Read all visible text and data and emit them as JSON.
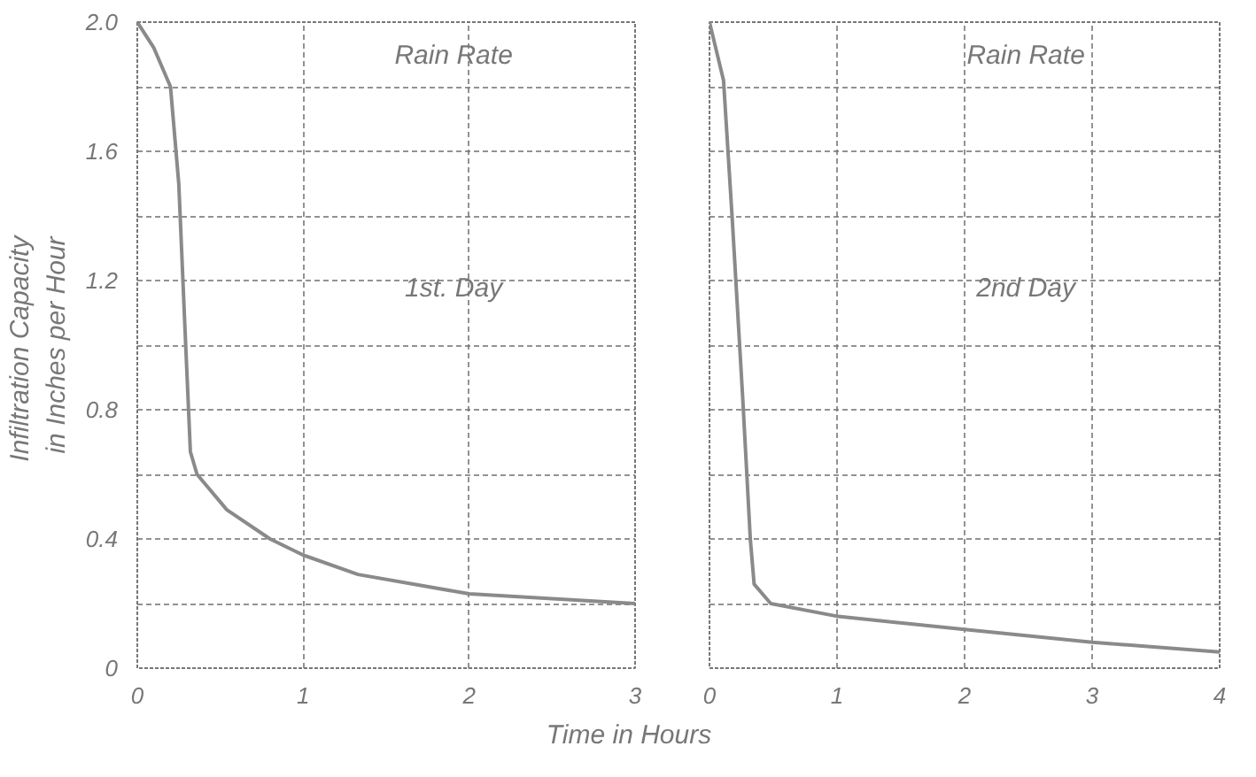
{
  "chart_data": [
    {
      "type": "line",
      "xlabel": "Time in Hours",
      "ylabel": "Infiltration  Capacity\nin Inches per Hour",
      "x": [
        0,
        0.1,
        0.2,
        0.25,
        0.29,
        0.32,
        0.36,
        0.54,
        0.8,
        1.0,
        1.33,
        2.0,
        3.0
      ],
      "series": [
        {
          "color": "#8a8a8a",
          "values": [
            2.0,
            1.92,
            1.8,
            1.5,
            1.02,
            0.67,
            0.6,
            0.49,
            0.4,
            0.35,
            0.29,
            0.23,
            0.2
          ]
        }
      ],
      "xlim": [
        0,
        3
      ],
      "ylim": [
        0,
        2.0
      ],
      "xticks": [
        0,
        1,
        2,
        3
      ],
      "yticks": [
        0,
        {
          "value": 0.2,
          "label": null
        },
        0.4,
        {
          "value": 0.6,
          "label": null
        },
        0.8,
        {
          "value": 1.0,
          "label": null
        },
        1.2,
        {
          "value": 1.4,
          "label": null
        },
        1.6,
        {
          "value": 1.8,
          "label": null
        },
        {
          "value": 2.0,
          "label": "2.0"
        }
      ],
      "annotations": [
        "Rain Rate",
        "1st. Day"
      ],
      "grid": true,
      "line_style": "solid"
    },
    {
      "type": "line",
      "x": [
        0,
        0.11,
        0.18,
        0.26,
        0.32,
        0.35,
        0.48,
        1.01,
        2.0,
        3.0,
        4.0
      ],
      "series": [
        {
          "color": "#8a8a8a",
          "values": [
            2.0,
            1.82,
            1.38,
            0.84,
            0.4,
            0.26,
            0.2,
            0.16,
            0.12,
            0.08,
            0.05
          ]
        }
      ],
      "xlim": [
        0,
        4
      ],
      "ylim": [
        0,
        2.0
      ],
      "xticks": [
        0,
        1,
        2,
        3,
        4
      ],
      "yticks": [
        0,
        0.2,
        0.4,
        0.6,
        0.8,
        1.0,
        1.2,
        1.4,
        1.6,
        1.8,
        2.0
      ],
      "annotations": [
        "Rain Rate",
        "2nd Day"
      ],
      "grid": true,
      "line_style": "solid",
      "tick_labels": "x"
    }
  ]
}
